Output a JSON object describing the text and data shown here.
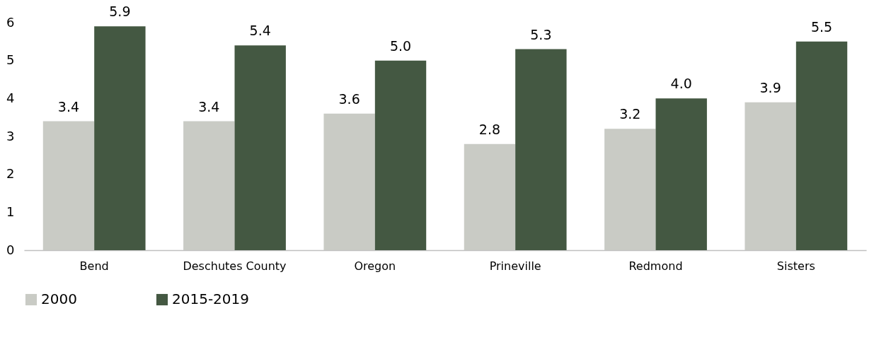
{
  "chart_data": {
    "type": "bar",
    "categories": [
      "Bend",
      "Deschutes County",
      "Oregon",
      "Prineville",
      "Redmond",
      "Sisters"
    ],
    "series": [
      {
        "name": "2000",
        "color": "#c9cbc5",
        "values": [
          3.4,
          3.4,
          3.6,
          2.8,
          3.2,
          3.9
        ],
        "value_labels": [
          "3.4",
          "3.4",
          "3.6",
          "2.8",
          "3.2",
          "3.9"
        ]
      },
      {
        "name": "2015-2019",
        "color": "#445842",
        "values": [
          5.9,
          5.4,
          5.0,
          5.3,
          4.0,
          5.5
        ],
        "value_labels": [
          "5.9",
          "5.4",
          "5.0",
          "5.3",
          "4.0",
          "5.5"
        ]
      }
    ],
    "ylim": [
      0,
      6
    ],
    "yticks": [
      0,
      1,
      2,
      3,
      4,
      5,
      6
    ],
    "legend": "bottom"
  }
}
